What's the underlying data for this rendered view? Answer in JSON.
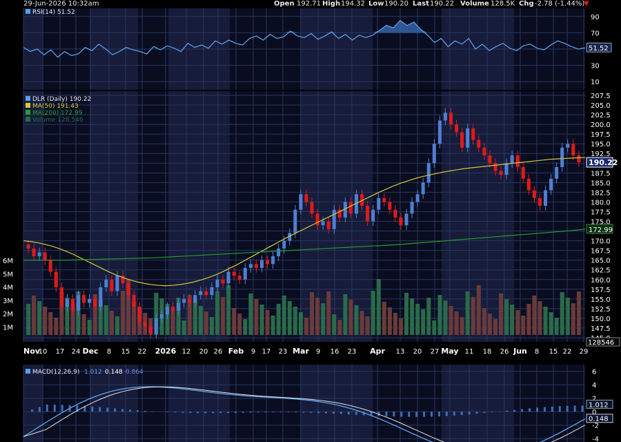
{
  "header": {
    "datetime": "29-Jun-2026 10:32am",
    "open_label": "Open",
    "open": "192.71",
    "high_label": "High",
    "high": "194.32",
    "low_label": "Low",
    "low": "190.20",
    "last_label": "Last",
    "last": "190.22",
    "volume_label": "Volume",
    "volume": "128.5K",
    "chg_label": "Chg",
    "chg": "-2.78 (-1.44%)",
    "chg_icon": "down-triangle-icon"
  },
  "colors": {
    "panel_bg": "#0a0d20",
    "band": "#161c3a",
    "grid": "#2a3660",
    "up": "#4f7fd1",
    "down": "#e01a1a",
    "ma50": "#d6c93a",
    "ma200": "#22a02a",
    "vol_up": "#2a6a4a",
    "vol_down": "#6a3a3a",
    "rsi": "#5a9ee6",
    "macd": "#5a9ee6",
    "signal": "#e6e6e6"
  },
  "chart_data": [
    {
      "type": "line",
      "panel": "rsi",
      "legend": "RSI(14) 51.52",
      "y_ticks": [
        "90",
        "70",
        "50",
        "30",
        "10"
      ],
      "ylim": [
        0,
        100
      ],
      "last_value": "51.52",
      "x": [
        0,
        5,
        10,
        15,
        20,
        25,
        30,
        35,
        40,
        45,
        50,
        55,
        60,
        65,
        70,
        75,
        80,
        85,
        90,
        95,
        100,
        105,
        110,
        115,
        120,
        125,
        130,
        135,
        140,
        145,
        150,
        155,
        160,
        165,
        170,
        175,
        180,
        185,
        190,
        195,
        200,
        205,
        210,
        215,
        220,
        225,
        230,
        235,
        240,
        245,
        250,
        255,
        260,
        265,
        270,
        275,
        280,
        285,
        290,
        295,
        300,
        305,
        310,
        315,
        320,
        325,
        330,
        335,
        340,
        345,
        350,
        355,
        360,
        365,
        370,
        375,
        380,
        385,
        390,
        395,
        400,
        405,
        410
      ],
      "values": [
        52,
        47,
        50,
        43,
        49,
        40,
        47,
        42,
        44,
        52,
        48,
        56,
        50,
        43,
        47,
        52,
        49,
        47,
        44,
        53,
        49,
        54,
        51,
        47,
        57,
        52,
        55,
        51,
        60,
        56,
        61,
        57,
        55,
        63,
        66,
        61,
        68,
        63,
        65,
        72,
        66,
        64,
        69,
        62,
        66,
        71,
        63,
        68,
        61,
        67,
        64,
        67,
        73,
        79,
        76,
        85,
        79,
        83,
        74,
        67,
        58,
        63,
        53,
        60,
        56,
        63,
        50,
        56,
        48,
        53,
        57,
        51,
        48,
        54,
        56,
        51,
        49,
        55,
        60,
        57,
        53,
        50,
        51.52
      ]
    },
    {
      "type": "candlestick",
      "panel": "price",
      "legend": [
        "DLR (Daily) 190.22",
        "MA(50) 191.43",
        "MA(200) 172.99",
        "Volume 128,546"
      ],
      "y_ticks": [
        "207.5",
        "205.0",
        "202.5",
        "200.0",
        "197.5",
        "195.0",
        "192.5",
        "190.0",
        "187.5",
        "185.0",
        "182.5",
        "180.0",
        "177.5",
        "175.0",
        "172.5",
        "170.0",
        "167.5",
        "165.0",
        "162.5",
        "160.0",
        "157.5",
        "155.0",
        "152.5",
        "150.0",
        "147.5",
        "145.0"
      ],
      "ylim": [
        145,
        207.5
      ],
      "last_price": "190.22",
      "ma200_last": "172.99",
      "close": [
        168,
        166,
        167,
        165,
        162,
        158,
        153,
        155,
        152,
        156,
        154,
        155,
        153,
        158,
        160,
        157,
        161,
        159,
        156,
        153,
        149,
        148,
        146,
        150,
        151,
        153,
        152,
        154,
        155,
        154,
        156,
        157,
        156,
        158,
        160,
        159,
        162,
        161,
        160,
        163,
        164,
        163,
        165,
        164,
        166,
        168,
        170,
        172,
        178,
        182,
        180,
        177,
        174,
        175,
        173,
        178,
        176,
        180,
        177,
        182,
        179,
        175,
        178,
        181,
        180,
        178,
        176,
        174,
        177,
        180,
        182,
        185,
        190,
        195,
        201,
        203,
        200,
        198,
        194,
        199,
        196,
        194,
        192,
        190,
        188,
        187,
        190,
        192,
        189,
        186,
        183,
        181,
        179,
        183,
        186,
        189,
        194,
        195,
        192,
        190.22
      ],
      "ma50": [
        170,
        169.8,
        169.5,
        169.1,
        168.6,
        168,
        167.3,
        166.5,
        165.6,
        164.7,
        163.8,
        162.9,
        162,
        161.2,
        160.5,
        159.9,
        159.4,
        159,
        158.7,
        158.5,
        158.4,
        158.5,
        158.7,
        159,
        159.4,
        159.9,
        160.5,
        161.2,
        162,
        162.9,
        163.8,
        164.8,
        165.8,
        166.8,
        167.8,
        168.8,
        169.8,
        170.8,
        171.7,
        172.6,
        173.5,
        174.4,
        175.3,
        176.2,
        177.1,
        178,
        178.9,
        179.8,
        180.7,
        181.6,
        182.5,
        183.3,
        184.1,
        184.8,
        185.4,
        186,
        186.5,
        186.9,
        187.3,
        187.7,
        188,
        188.3,
        188.6,
        188.8,
        189,
        189.2,
        189.4,
        189.6,
        189.8,
        190,
        190.2,
        190.4,
        190.6,
        190.8,
        191,
        191.1,
        191.2,
        191.3,
        191.4,
        191.43
      ],
      "ma200": [
        165,
        165,
        165,
        165,
        165.1,
        165.2,
        165.3,
        165.4,
        165.5,
        165.6,
        165.8,
        166,
        166.2,
        166.4,
        166.6,
        166.8,
        167,
        167.2,
        167.4,
        167.6,
        167.8,
        168,
        168.2,
        168.4,
        168.6,
        168.8,
        169,
        169.3,
        169.6,
        169.9,
        170.2,
        170.5,
        170.8,
        171.1,
        171.4,
        171.7,
        172,
        172.3,
        172.6,
        172.99
      ],
      "volume_max_label": "6M",
      "volume_ticks": [
        "6M",
        "5M",
        "4M",
        "3M",
        "2M",
        "1M"
      ],
      "volume_last": "128546"
    },
    {
      "type": "line",
      "panel": "macd",
      "legend": [
        "MACD(12,26,9)",
        "1.012",
        "0.148",
        "0.864"
      ],
      "y_ticks": [
        "6",
        "4",
        "2",
        "0",
        "-2",
        "-4"
      ],
      "ylim": [
        -4.5,
        7
      ],
      "last_macd": "1.012",
      "last_signal": "0.148"
    }
  ],
  "x_axis": {
    "labels": [
      "Nov",
      "10",
      "17",
      "24",
      "Dec",
      "8",
      "15",
      "22",
      "2026",
      "12",
      "20",
      "26",
      "Feb",
      "9",
      "17",
      "23",
      "Mar",
      "9",
      "16",
      "23",
      "Apr",
      "13",
      "20",
      "27",
      "May",
      "11",
      "18",
      "26",
      "Jun",
      "8",
      "15",
      "22",
      "29"
    ]
  }
}
